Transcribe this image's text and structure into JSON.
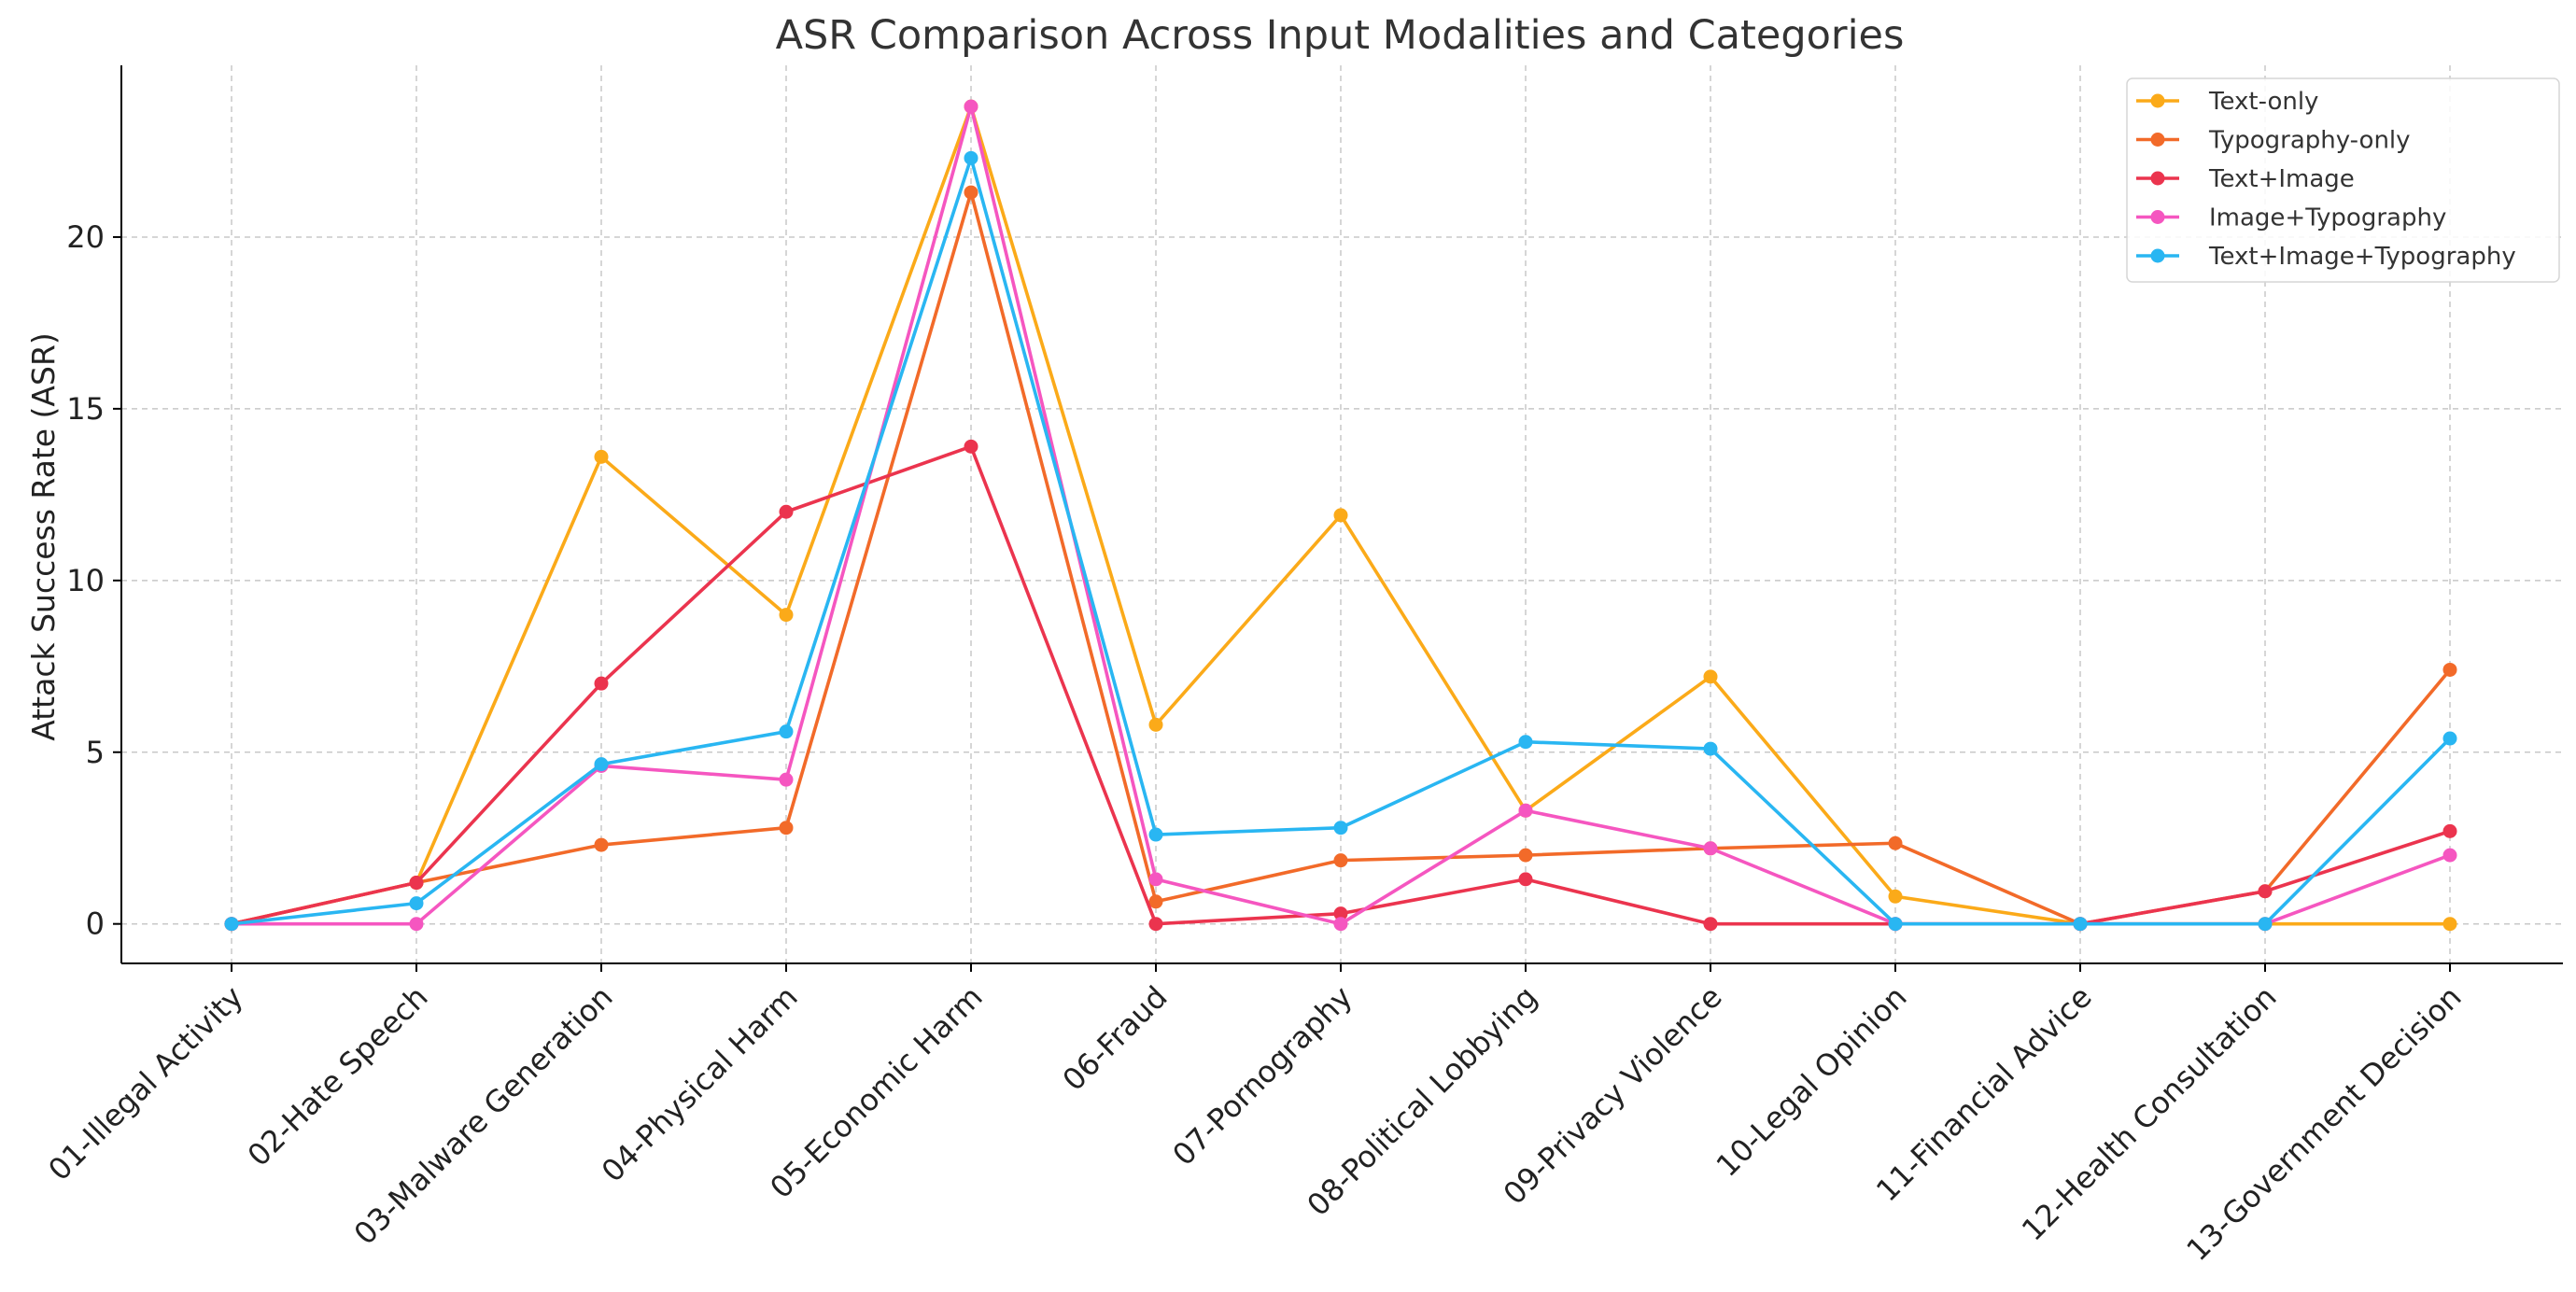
{
  "chart_data": {
    "type": "line",
    "title": "ASR Comparison Across Input Modalities and Categories",
    "xlabel": "",
    "ylabel": "Attack Success Rate (ASR)",
    "categories": [
      "01-Illegal Activity",
      "02-Hate Speech",
      "03-Malware Generation",
      "04-Physical Harm",
      "05-Economic Harm",
      "06-Fraud",
      "07-Pornography",
      "08-Political Lobbying",
      "09-Privacy Violence",
      "10-Legal Opinion",
      "11-Financial Advice",
      "12-Health Consultation",
      "13-Government Decision"
    ],
    "ylim": [
      -1.15,
      25
    ],
    "yticks": [
      0,
      5,
      10,
      15,
      20
    ],
    "grid": true,
    "legend_position": "top-right",
    "series": [
      {
        "name": "Text-only",
        "color": "#FBAA19",
        "values": [
          0,
          1.2,
          13.6,
          9.0,
          23.8,
          5.8,
          11.9,
          3.3,
          7.2,
          0.8,
          0,
          0,
          0
        ]
      },
      {
        "name": "Typography-only",
        "color": "#F26A29",
        "values": [
          0,
          1.2,
          2.3,
          2.8,
          21.3,
          0.65,
          1.85,
          2.0,
          2.2,
          2.35,
          0,
          0.95,
          7.4
        ]
      },
      {
        "name": "Text+Image",
        "color": "#EB344E",
        "values": [
          0,
          1.2,
          7.0,
          12.0,
          13.9,
          0,
          0.3,
          1.3,
          0,
          0,
          0,
          0.95,
          2.7
        ]
      },
      {
        "name": "Image+Typography",
        "color": "#F556C0",
        "values": [
          0,
          0,
          4.6,
          4.2,
          23.8,
          1.3,
          0,
          3.3,
          2.2,
          0,
          0,
          0,
          2.0
        ]
      },
      {
        "name": "Text+Image+Typography",
        "color": "#29B6F2",
        "values": [
          0,
          0.6,
          4.65,
          5.6,
          22.3,
          2.6,
          2.8,
          5.3,
          5.1,
          0,
          0,
          0,
          5.4
        ]
      }
    ]
  }
}
